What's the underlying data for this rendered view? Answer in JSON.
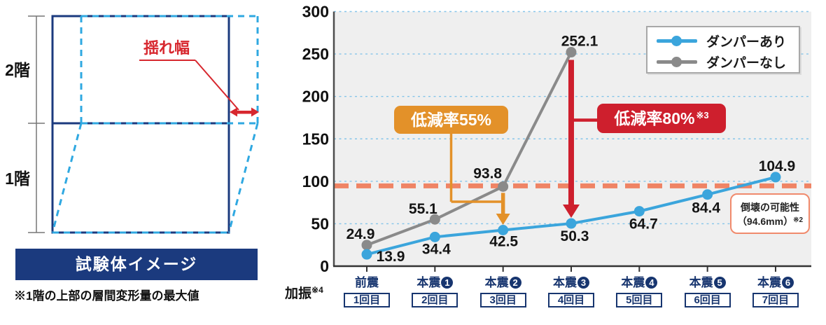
{
  "left_panel": {
    "floor2_label": "2階",
    "floor1_label": "1階",
    "sway_label": "揺れ幅",
    "caption": "試験体イメージ",
    "footnote": "※1階の上部の層間変形量の最大値",
    "colors": {
      "navy": "#1B3A7E",
      "cyan": "#2FA8E1",
      "red": "#D7272E"
    }
  },
  "chart_data": {
    "type": "line",
    "title": "",
    "categories": [
      {
        "label": "前震",
        "number": "",
        "trial": "1回目"
      },
      {
        "label": "本震",
        "number": "1",
        "trial": "2回目"
      },
      {
        "label": "本震",
        "number": "2",
        "trial": "3回目"
      },
      {
        "label": "本震",
        "number": "3",
        "trial": "4回目"
      },
      {
        "label": "本震",
        "number": "4",
        "trial": "5回目"
      },
      {
        "label": "本震",
        "number": "5",
        "trial": "6回目"
      },
      {
        "label": "本震",
        "number": "6",
        "trial": "7回目"
      }
    ],
    "x_axis": {
      "label": "加振",
      "note": "※4"
    },
    "ylim": [
      0,
      300
    ],
    "yticks": [
      0,
      50,
      100,
      150,
      200,
      250,
      300
    ],
    "grid": "horizontal-dashed",
    "legend_position": "top-right",
    "series": [
      {
        "name": "ダンパーあり",
        "color": "#3BA5DC",
        "values": [
          13.9,
          34.4,
          42.5,
          50.3,
          64.7,
          84.4,
          104.9
        ],
        "label_offsets": [
          [
            34,
            10
          ],
          [
            2,
            24
          ],
          [
            1,
            23
          ],
          [
            5,
            25
          ],
          [
            6,
            25
          ],
          [
            -2,
            26
          ],
          [
            2,
            -9
          ]
        ]
      },
      {
        "name": "ダンパーなし",
        "color": "#8A8A8A",
        "values": [
          24.9,
          55.1,
          93.8,
          252.1,
          null,
          null,
          null
        ],
        "label_offsets": [
          [
            -9,
            -9
          ],
          [
            -17,
            -8
          ],
          [
            -22,
            -12
          ],
          [
            12,
            -9
          ]
        ]
      }
    ],
    "threshold": {
      "value": 94.6,
      "line_color": "#EF8465",
      "label_line1": "倒壊の可能性",
      "label_line2": "（94.6mm）",
      "label_note": "※2"
    },
    "annotations": [
      {
        "text": "低減率55%",
        "note": "",
        "color": "#E39129",
        "at_category_index": 2
      },
      {
        "text": "低減率80%",
        "note": "※3",
        "color": "#CE1F2D",
        "at_category_index": 3
      }
    ]
  }
}
